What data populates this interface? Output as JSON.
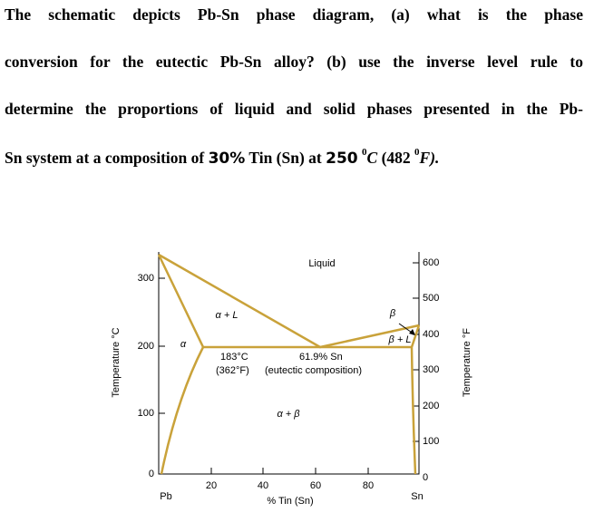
{
  "question": {
    "lines": [
      "The schematic depicts Pb-Sn phase diagram, (a) what is the phase",
      "conversion for the eutectic Pb-Sn alloy? (b) use the inverse level rule to",
      "determine the proportions of liquid and solid phases presented in the Pb-"
    ],
    "last_line": [
      "Sn system at a composition of ",
      "30%",
      " Tin (Sn) at ",
      "250",
      "0",
      "C",
      " (482 ",
      "0",
      "F)."
    ]
  },
  "diagram": {
    "y_axis_title": "Temperature °C",
    "y2_axis_title": "Temperature °F",
    "x_axis_title": "% Tin (Sn)",
    "y_tick_labels": [
      "300",
      "200",
      "100",
      "0"
    ],
    "y2_tick_labels": [
      "600",
      "500",
      "400",
      "300",
      "200",
      "100",
      "0"
    ],
    "x_tick_labels": [
      "Pb",
      "20",
      "40",
      "60",
      "80",
      "Sn"
    ],
    "regions": {
      "liquid": "Liquid",
      "alpha_liquid": "α + L",
      "alpha": "α",
      "beta": "β",
      "beta_liquid": "β + L",
      "alpha_beta": "α + β"
    },
    "eutectic": {
      "temp_c": "183°C",
      "temp_f": "(362°F)",
      "composition": "61.9% Sn",
      "note": "(eutectic composition)"
    }
  }
}
